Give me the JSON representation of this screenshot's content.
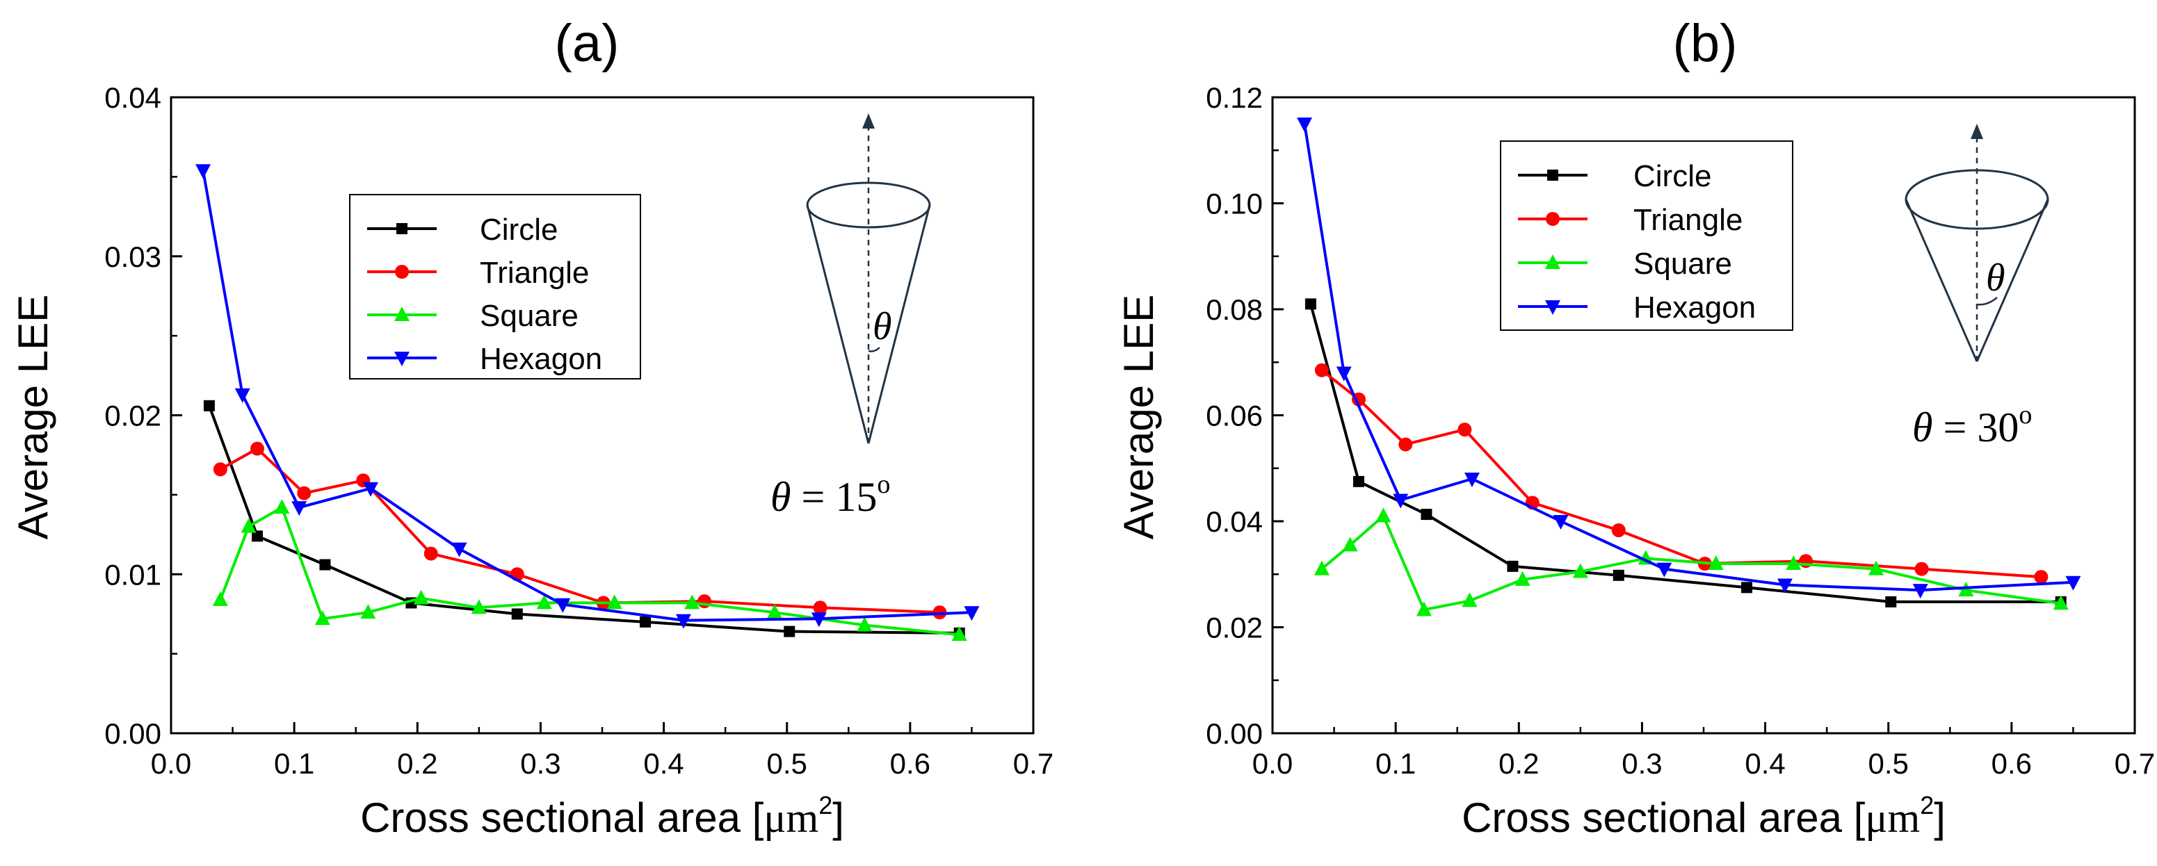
{
  "colors": {
    "Circle": "#000000",
    "Triangle": "#ff0000",
    "Square": "#00ee00",
    "Hexagon": "#0000ff"
  },
  "markers": {
    "Circle": "square",
    "Triangle": "circle",
    "Square": "triangle-up",
    "Hexagon": "triangle-down"
  },
  "chart_data": [
    {
      "type": "line",
      "title": "(a)",
      "xlabel": "Cross sectional area [μm²]",
      "xlabel_text": "Cross sectional area [",
      "xlabel_unit": "μm",
      "xlabel_sup": "2",
      "xlabel_close": "]",
      "ylabel": "Average LEE",
      "xlim": [
        0.0,
        0.7
      ],
      "ylim": [
        0.0,
        0.04
      ],
      "xticks": [
        "0.0",
        "0.1",
        "0.2",
        "0.3",
        "0.4",
        "0.5",
        "0.6",
        "0.7"
      ],
      "yticks": [
        "0.00",
        "0.01",
        "0.02",
        "0.03",
        "0.04"
      ],
      "legend_position": "upper-left-center",
      "angle_label_symbol": "θ",
      "angle_label_rest": " = 15",
      "angle_label_sup": "o",
      "inset_theta": "θ",
      "series": [
        {
          "name": "Circle",
          "x": [
            0.031,
            0.07,
            0.125,
            0.195,
            0.281,
            0.385,
            0.502,
            0.64
          ],
          "y": [
            0.0206,
            0.0124,
            0.0106,
            0.0082,
            0.0075,
            0.007,
            0.0064,
            0.0063
          ]
        },
        {
          "name": "Triangle",
          "x": [
            0.04,
            0.07,
            0.108,
            0.156,
            0.211,
            0.281,
            0.351,
            0.433,
            0.527,
            0.624
          ],
          "y": [
            0.0166,
            0.0179,
            0.0151,
            0.0159,
            0.0113,
            0.01,
            0.0082,
            0.0083,
            0.0079,
            0.0076
          ]
        },
        {
          "name": "Square",
          "x": [
            0.04,
            0.063,
            0.09,
            0.123,
            0.16,
            0.203,
            0.25,
            0.303,
            0.36,
            0.423,
            0.49,
            0.563,
            0.64
          ],
          "y": [
            0.0084,
            0.013,
            0.0142,
            0.0072,
            0.0076,
            0.0085,
            0.0079,
            0.0082,
            0.0082,
            0.0082,
            0.0076,
            0.0068,
            0.0062
          ]
        },
        {
          "name": "Hexagon",
          "x": [
            0.026,
            0.058,
            0.104,
            0.162,
            0.234,
            0.318,
            0.416,
            0.526,
            0.65
          ],
          "y": [
            0.0354,
            0.0213,
            0.0142,
            0.0154,
            0.0116,
            0.0081,
            0.0071,
            0.0072,
            0.0076
          ]
        }
      ]
    },
    {
      "type": "line",
      "title": "(b)",
      "xlabel": "Cross sectional area [μm²]",
      "xlabel_text": "Cross sectional area [",
      "xlabel_unit": "μm",
      "xlabel_sup": "2",
      "xlabel_close": "]",
      "ylabel": "Average LEE",
      "xlim": [
        0.0,
        0.7
      ],
      "ylim": [
        0.0,
        0.12
      ],
      "xticks": [
        "0.0",
        "0.1",
        "0.2",
        "0.3",
        "0.4",
        "0.5",
        "0.6",
        "0.7"
      ],
      "yticks": [
        "0.00",
        "0.02",
        "0.04",
        "0.06",
        "0.08",
        "0.10",
        "0.12"
      ],
      "legend_position": "upper-left",
      "angle_label_symbol": "θ",
      "angle_label_rest": " = 30",
      "angle_label_sup": "o",
      "inset_theta": "θ",
      "series": [
        {
          "name": "Circle",
          "x": [
            0.031,
            0.07,
            0.125,
            0.195,
            0.281,
            0.385,
            0.502,
            0.64
          ],
          "y": [
            0.081,
            0.0475,
            0.0413,
            0.0315,
            0.0298,
            0.0275,
            0.0248,
            0.0248
          ]
        },
        {
          "name": "Triangle",
          "x": [
            0.04,
            0.07,
            0.108,
            0.156,
            0.211,
            0.281,
            0.351,
            0.433,
            0.527,
            0.624
          ],
          "y": [
            0.0685,
            0.063,
            0.0545,
            0.0573,
            0.0435,
            0.0383,
            0.032,
            0.0325,
            0.031,
            0.0295
          ]
        },
        {
          "name": "Square",
          "x": [
            0.04,
            0.063,
            0.09,
            0.123,
            0.16,
            0.203,
            0.25,
            0.303,
            0.36,
            0.423,
            0.49,
            0.563,
            0.64
          ],
          "y": [
            0.031,
            0.0355,
            0.041,
            0.0233,
            0.025,
            0.029,
            0.0305,
            0.033,
            0.032,
            0.032,
            0.031,
            0.027,
            0.0245
          ]
        },
        {
          "name": "Hexagon",
          "x": [
            0.026,
            0.058,
            0.104,
            0.162,
            0.234,
            0.318,
            0.416,
            0.526,
            0.65
          ],
          "y": [
            0.115,
            0.068,
            0.044,
            0.048,
            0.04,
            0.031,
            0.028,
            0.027,
            0.0285
          ]
        }
      ]
    }
  ]
}
